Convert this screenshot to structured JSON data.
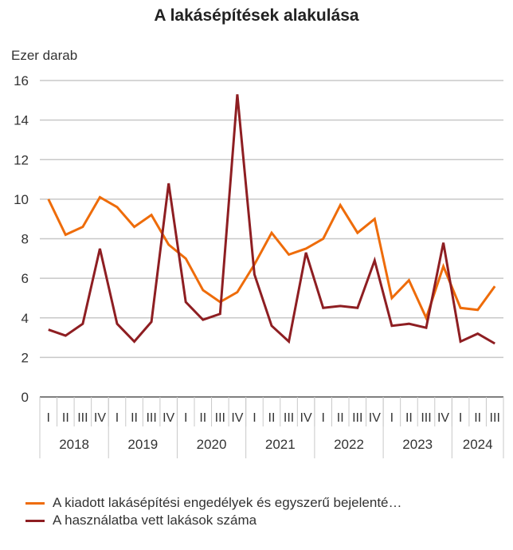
{
  "chart_data": {
    "type": "line",
    "title": "A lakásépítések alakulása",
    "ylabel": "Ezer darab",
    "xlabel": "",
    "ylim": [
      0,
      16
    ],
    "yticks": [
      0,
      2,
      4,
      6,
      8,
      10,
      12,
      14,
      16
    ],
    "grid": true,
    "legend_position": "bottom-left",
    "quarter_labels": [
      "I",
      "II",
      "III",
      "IV",
      "I",
      "II",
      "III",
      "IV",
      "I",
      "II",
      "III",
      "IV",
      "I",
      "II",
      "III",
      "IV",
      "I",
      "II",
      "III",
      "IV",
      "I",
      "II",
      "III",
      "IV",
      "I",
      "II",
      "III"
    ],
    "years": [
      {
        "label": "2018",
        "quarters": 4
      },
      {
        "label": "2019",
        "quarters": 4
      },
      {
        "label": "2020",
        "quarters": 4
      },
      {
        "label": "2021",
        "quarters": 4
      },
      {
        "label": "2022",
        "quarters": 4
      },
      {
        "label": "2023",
        "quarters": 4
      },
      {
        "label": "2024",
        "quarters": 3
      }
    ],
    "series": [
      {
        "name": "A kiadott lakásépítési engedélyek és egyszerű bejelenté…",
        "color": "#EE6C0A",
        "values": [
          10.0,
          8.2,
          8.6,
          10.1,
          9.6,
          8.6,
          9.2,
          7.7,
          7.0,
          5.4,
          4.8,
          5.3,
          6.7,
          8.3,
          7.2,
          7.5,
          8.0,
          9.7,
          8.3,
          9.0,
          5.0,
          5.9,
          4.0,
          6.6,
          4.5,
          4.4,
          5.6
        ]
      },
      {
        "name": "A használatba vett lakások száma",
        "color": "#8E1E22",
        "values": [
          3.4,
          3.1,
          3.7,
          7.5,
          3.7,
          2.8,
          3.8,
          10.8,
          4.8,
          3.9,
          4.2,
          15.3,
          6.2,
          3.6,
          2.8,
          7.3,
          4.5,
          4.6,
          4.5,
          6.9,
          3.6,
          3.7,
          3.5,
          7.8,
          2.8,
          3.2,
          2.7
        ]
      }
    ]
  }
}
